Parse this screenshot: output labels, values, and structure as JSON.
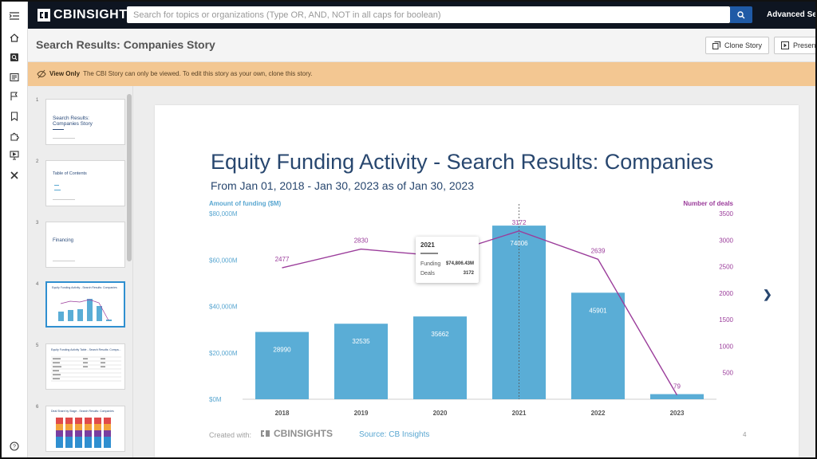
{
  "app": {
    "logo_text": "CBINSIGHTS",
    "search_placeholder": "Search for topics or organizations (Type OR, AND, NOT in all caps for boolean)",
    "advanced_search_label": "Advanced Search"
  },
  "rail": {
    "items": [
      "collapse-icon",
      "home-icon",
      "search-doc-icon",
      "news-icon",
      "flag-icon",
      "bookmark-icon",
      "puzzle-icon",
      "presentation-icon",
      "tools-icon",
      "help-icon"
    ]
  },
  "header": {
    "title": "Search Results: Companies Story",
    "clone_label": "Clone Story",
    "present_label": "Present"
  },
  "banner": {
    "strong": "View Only",
    "text": "The CBI Story can only be viewed. To edit this story as your own, clone this story."
  },
  "thumbnails": [
    {
      "num": "1",
      "title": "Search Results: Companies Story"
    },
    {
      "num": "2",
      "title": "Table of Contents"
    },
    {
      "num": "3",
      "title": "Financing"
    },
    {
      "num": "4",
      "title": "Equity Funding Activity - Search Results: Companies"
    },
    {
      "num": "5",
      "title": "Equity Funding Activity Table - Search Results: Compa..."
    },
    {
      "num": "6",
      "title": "Deal Share by Stage - Search Results: Companies"
    }
  ],
  "slide": {
    "title": "Equity Funding Activity - Search Results: Companies",
    "subtitle": "From Jan 01, 2018 - Jan 30, 2023 as of Jan 30, 2023",
    "created_with": "Created with:",
    "footer_logo": "CBINSIGHTS",
    "source": "Source: CB Insights",
    "page_number": "4"
  },
  "tooltip": {
    "year": "2021",
    "funding_label": "Funding",
    "funding_value": "$74,806.43M",
    "deals_label": "Deals",
    "deals_value": "3172"
  },
  "colors": {
    "bar": "#5aadd6",
    "line": "#9b3d9b",
    "title": "#28476f",
    "left_axis_label": "#5aa7d1",
    "right_axis_label": "#9b3d9b"
  },
  "chart_data": {
    "type": "bar",
    "categories": [
      "2018",
      "2019",
      "2020",
      "2021",
      "2022",
      "2023"
    ],
    "series": [
      {
        "name": "Amount of funding ($M)",
        "type": "bar",
        "axis": "left",
        "values": [
          28990,
          32535,
          35662,
          74806,
          45901,
          2200
        ],
        "labels": [
          "28990",
          "32535",
          "35662",
          "74806",
          "45901",
          ""
        ]
      },
      {
        "name": "Number of deals",
        "type": "line",
        "axis": "right",
        "values": [
          2477,
          2830,
          2700,
          3172,
          2639,
          79
        ],
        "labels": [
          "2477",
          "2830",
          "",
          "3172",
          "2639",
          "79"
        ]
      }
    ],
    "ylabel_left": "Amount of funding ($M)",
    "ylabel_right": "Number of deals",
    "ylim_left": [
      0,
      80000
    ],
    "ylim_right": [
      0,
      3500
    ],
    "yticks_left": [
      "$0M",
      "$20,000M",
      "$40,000M",
      "$60,000M",
      "$80,000M"
    ],
    "yticks_right": [
      "500",
      "1000",
      "1500",
      "2000",
      "2500",
      "3000",
      "3500"
    ],
    "grid": false,
    "highlight_category": "2021"
  }
}
